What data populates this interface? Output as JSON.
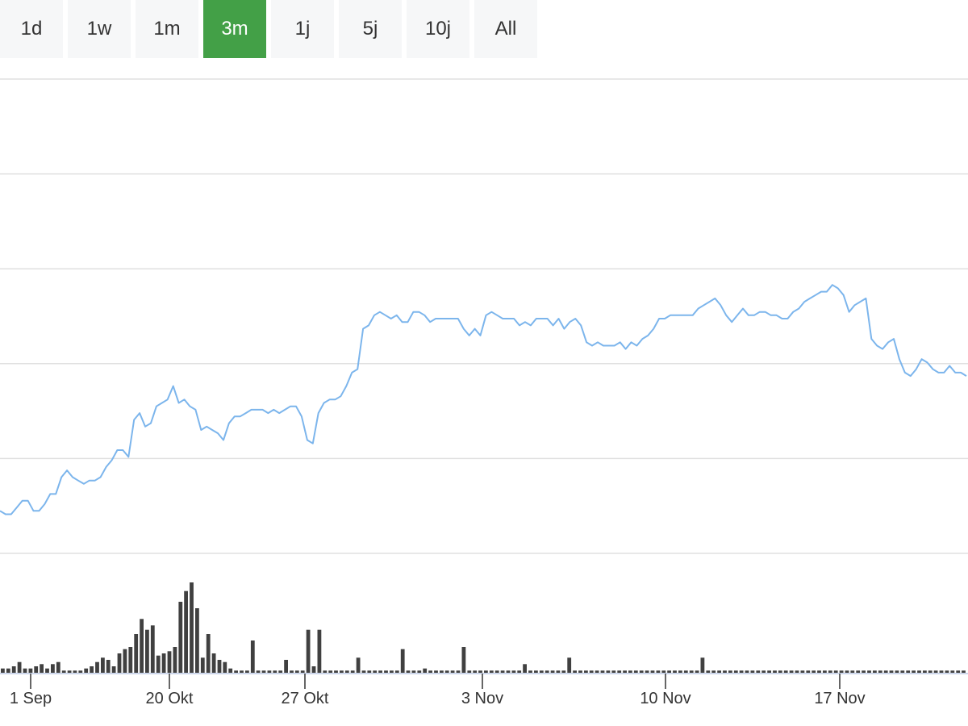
{
  "range_selector": {
    "active": "3m",
    "buttons": [
      {
        "label": "1d"
      },
      {
        "label": "1w"
      },
      {
        "label": "1m"
      },
      {
        "label": "3m"
      },
      {
        "label": "1j"
      },
      {
        "label": "5j"
      },
      {
        "label": "10j"
      },
      {
        "label": "All"
      }
    ]
  },
  "colors": {
    "active_button": "#43a047",
    "button_bg": "#f6f7f8",
    "price_line": "#7cb5ec",
    "volume_bar": "#404040",
    "grid": "#e0e0e0",
    "axis": "#ccd6eb"
  },
  "chart_data": {
    "type": "line",
    "title": "",
    "xlabel": "",
    "ylabel": "",
    "x_tick_labels": [
      "1 Sep",
      "20 Okt",
      "27 Okt",
      "3 Nov",
      "10 Nov",
      "17 Nov"
    ],
    "y_axis_labels_visible": false,
    "grid": true,
    "ylim": [
      0,
      100
    ],
    "price_series": {
      "name": "",
      "values": [
        4,
        3,
        3,
        5,
        7,
        7,
        4,
        4,
        6,
        9,
        9,
        14,
        16,
        14,
        13,
        12,
        13,
        13,
        14,
        17,
        19,
        22,
        22,
        20,
        31,
        33,
        29,
        30,
        35,
        36,
        37,
        41,
        36,
        37,
        35,
        34,
        28,
        29,
        28,
        27,
        25,
        30,
        32,
        32,
        33,
        34,
        34,
        34,
        33,
        34,
        33,
        34,
        35,
        35,
        32,
        25,
        24,
        33,
        36,
        37,
        37,
        38,
        41,
        45,
        46,
        58,
        59,
        62,
        63,
        62,
        61,
        62,
        60,
        60,
        63,
        63,
        62,
        60,
        61,
        61,
        61,
        61,
        61,
        58,
        56,
        58,
        56,
        62,
        63,
        62,
        61,
        61,
        61,
        59,
        60,
        59,
        61,
        61,
        61,
        59,
        61,
        58,
        60,
        61,
        59,
        54,
        53,
        54,
        53,
        53,
        53,
        54,
        52,
        54,
        53,
        55,
        56,
        58,
        61,
        61,
        62,
        62,
        62,
        62,
        62,
        64,
        65,
        66,
        67,
        65,
        62,
        60,
        62,
        64,
        62,
        62,
        63,
        63,
        62,
        62,
        61,
        61,
        63,
        64,
        66,
        67,
        68,
        69,
        69,
        71,
        70,
        68,
        63,
        65,
        66,
        67,
        55,
        53,
        52,
        54,
        55,
        49,
        45,
        44,
        46,
        49,
        48,
        46,
        45,
        45,
        47,
        45,
        45,
        44
      ]
    },
    "volume_series": {
      "name": "",
      "values": [
        2,
        2,
        3,
        5,
        2,
        2,
        3,
        4,
        2,
        4,
        5,
        1,
        1,
        1,
        1,
        2,
        3,
        5,
        7,
        6,
        3,
        9,
        11,
        12,
        18,
        25,
        20,
        22,
        8,
        9,
        10,
        12,
        33,
        38,
        42,
        30,
        7,
        18,
        9,
        6,
        5,
        2,
        1,
        1,
        1,
        15,
        1,
        1,
        1,
        1,
        1,
        6,
        1,
        1,
        1,
        20,
        3,
        20,
        1,
        1,
        1,
        1,
        1,
        1,
        7,
        1,
        1,
        1,
        1,
        1,
        1,
        1,
        11,
        1,
        1,
        1,
        2,
        1,
        1,
        1,
        1,
        1,
        1,
        12,
        1,
        1,
        1,
        1,
        1,
        1,
        1,
        1,
        1,
        1,
        4,
        1,
        1,
        1,
        1,
        1,
        1,
        1,
        7,
        1,
        1,
        1,
        1,
        1,
        1,
        1,
        1,
        1,
        1,
        1,
        1,
        1,
        1,
        1,
        1,
        1,
        1,
        1,
        1,
        1,
        1,
        1,
        7,
        1,
        1,
        1,
        1,
        1,
        1,
        1,
        1,
        1,
        1,
        1,
        1,
        1,
        1,
        1,
        1,
        1,
        1,
        1,
        1,
        1,
        1,
        1,
        1,
        1,
        1,
        1,
        1,
        1,
        1,
        1,
        1,
        1,
        1,
        1,
        1,
        1,
        1,
        1,
        1,
        1,
        1,
        1,
        1,
        1,
        1,
        1
      ]
    }
  }
}
